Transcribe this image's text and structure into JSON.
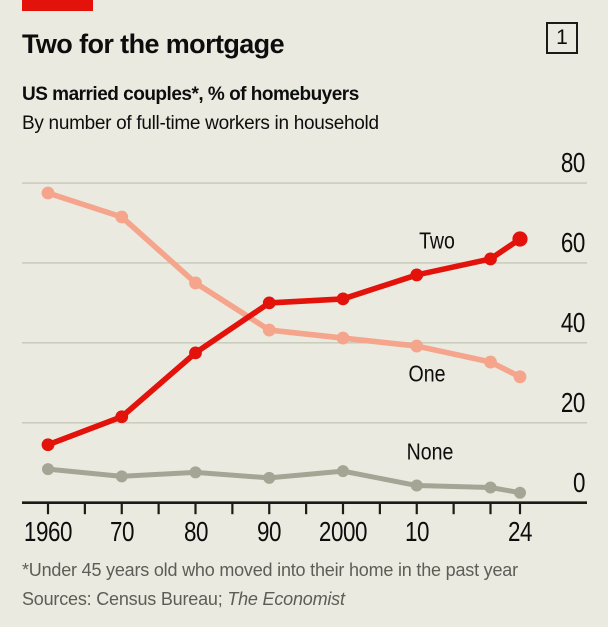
{
  "header": {
    "title": "Two for the mortgage",
    "index_badge": "1",
    "subtitle_bold": "US married couples*, % of homebuyers",
    "subtitle_secondary": "By number of full-time workers in household"
  },
  "chart_data": {
    "type": "line",
    "title": "Two for the mortgage",
    "subtitle": "US married couples*, % of homebuyers, by number of full-time workers in household",
    "x": [
      1960,
      1970,
      1980,
      1990,
      2000,
      2010,
      2020,
      2024
    ],
    "series": [
      {
        "name": "Two",
        "color": "#E3120B",
        "values": [
          14.5,
          21.5,
          37.5,
          50,
          51,
          57,
          61,
          66
        ]
      },
      {
        "name": "One",
        "color": "#F5A58C",
        "values": [
          77.5,
          71.5,
          55,
          43.2,
          41.2,
          39.2,
          35.2,
          31.5
        ]
      },
      {
        "name": "None",
        "color": "#A5A596",
        "values": [
          8.4,
          6.6,
          7.6,
          6.2,
          7.9,
          4.3,
          3.8,
          2.5
        ]
      }
    ],
    "ylim": [
      0,
      80
    ],
    "yticks": [
      0,
      20,
      40,
      60,
      80
    ],
    "y_axis_side": "right",
    "x_tick_years": [
      1960,
      1965,
      1970,
      1975,
      1980,
      1985,
      1990,
      1995,
      2000,
      2005,
      2010,
      2015,
      2020,
      2024
    ],
    "x_labels": [
      {
        "year": 1960,
        "label": "1960"
      },
      {
        "year": 1970,
        "label": "70"
      },
      {
        "year": 1980,
        "label": "80"
      },
      {
        "year": 1990,
        "label": "90"
      },
      {
        "year": 2000,
        "label": "2000"
      },
      {
        "year": 2010,
        "label": "10"
      },
      {
        "year": 2024,
        "label": "24"
      }
    ],
    "grid": "horizontal",
    "legend": "inline-labels"
  },
  "footer": {
    "footnote": "*Under 45 years old who moved into their home in the past year",
    "sources_prefix": "Sources: Census Bureau; ",
    "sources_italic": "The Economist"
  },
  "colors": {
    "background": "#EBEAE0",
    "accent_red": "#E3120B",
    "grid": "#C5C7BA",
    "axis": "#1B1B18",
    "text": "#0D0D0D",
    "muted_text": "#5D5D57"
  }
}
